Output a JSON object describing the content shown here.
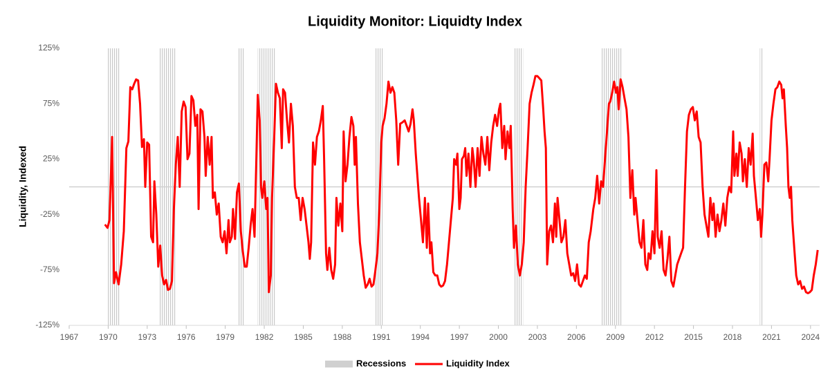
{
  "chart_data": {
    "type": "line",
    "title": "Liquidity Monitor: Liquidty Index",
    "y_label": "Liquidity, Indexed",
    "xlim": [
      1967,
      2024.7
    ],
    "ylim": [
      -125,
      125
    ],
    "xticks": [
      1967,
      1970,
      1973,
      1976,
      1979,
      1982,
      1985,
      1988,
      1991,
      1994,
      1997,
      2000,
      2003,
      2006,
      2009,
      2012,
      2015,
      2018,
      2021,
      2024
    ],
    "yticks": [
      {
        "value": -125,
        "label": "-125%"
      },
      {
        "value": -75,
        "label": "-75%"
      },
      {
        "value": -25,
        "label": "-25%"
      },
      {
        "value": 25,
        "label": "25%"
      },
      {
        "value": 75,
        "label": "75%"
      },
      {
        "value": 125,
        "label": "125%"
      }
    ],
    "legend": "bottom",
    "recessions": {
      "name": "Recessions",
      "color": "#d0d0d0",
      "periods": [
        [
          1969.9,
          1970.9
        ],
        [
          1973.9,
          1975.2
        ],
        [
          1980.0,
          1980.5
        ],
        [
          1981.5,
          1982.9
        ],
        [
          1990.5,
          1991.2
        ],
        [
          2001.2,
          2001.9
        ],
        [
          2007.9,
          2009.5
        ],
        [
          2020.1,
          2020.3
        ]
      ]
    },
    "x": [
      1969.75,
      1969.95,
      1970.1,
      1970.3,
      1970.45,
      1970.6,
      1970.8,
      1971.0,
      1971.2,
      1971.4,
      1971.55,
      1971.7,
      1971.85,
      1972.0,
      1972.15,
      1972.3,
      1972.45,
      1972.6,
      1972.75,
      1972.85,
      1973.0,
      1973.15,
      1973.3,
      1973.45,
      1973.55,
      1973.7,
      1973.85,
      1974.0,
      1974.15,
      1974.3,
      1974.45,
      1974.6,
      1974.75,
      1974.9,
      1975.05,
      1975.2,
      1975.35,
      1975.5,
      1975.65,
      1975.8,
      1975.95,
      1976.1,
      1976.25,
      1976.4,
      1976.55,
      1976.7,
      1976.85,
      1976.95,
      1977.1,
      1977.25,
      1977.4,
      1977.5,
      1977.65,
      1977.8,
      1977.95,
      1978.05,
      1978.2,
      1978.35,
      1978.5,
      1978.65,
      1978.8,
      1978.95,
      1979.1,
      1979.25,
      1979.35,
      1979.5,
      1979.6,
      1979.75,
      1979.9,
      1980.05,
      1980.2,
      1980.35,
      1980.5,
      1980.65,
      1980.8,
      1980.95,
      1981.1,
      1981.25,
      1981.4,
      1981.5,
      1981.65,
      1981.75,
      1981.85,
      1982.0,
      1982.15,
      1982.25,
      1982.35,
      1982.5,
      1982.6,
      1982.75,
      1982.9,
      1983.05,
      1983.2,
      1983.35,
      1983.45,
      1983.6,
      1983.75,
      1983.9,
      1984.05,
      1984.2,
      1984.35,
      1984.5,
      1984.65,
      1984.8,
      1984.95,
      1985.1,
      1985.25,
      1985.4,
      1985.5,
      1985.6,
      1985.75,
      1985.9,
      1986.05,
      1986.2,
      1986.35,
      1986.5,
      1986.6,
      1986.75,
      1986.85,
      1987.0,
      1987.15,
      1987.3,
      1987.45,
      1987.55,
      1987.7,
      1987.85,
      1988.0,
      1988.1,
      1988.25,
      1988.4,
      1988.55,
      1988.7,
      1988.85,
      1988.95,
      1989.05,
      1989.2,
      1989.35,
      1989.5,
      1989.65,
      1989.8,
      1989.95,
      1990.1,
      1990.25,
      1990.4,
      1990.55,
      1990.7,
      1990.85,
      1991.0,
      1991.1,
      1991.25,
      1991.4,
      1991.55,
      1991.7,
      1991.85,
      1992.0,
      1992.15,
      1992.3,
      1992.45,
      1992.6,
      1992.8,
      1992.95,
      1993.1,
      1993.25,
      1993.4,
      1993.5,
      1993.65,
      1993.8,
      1993.9,
      1994.05,
      1994.2,
      1994.35,
      1994.5,
      1994.6,
      1994.75,
      1994.85,
      1995.0,
      1995.15,
      1995.3,
      1995.45,
      1995.6,
      1995.75,
      1995.9,
      1996.05,
      1996.2,
      1996.35,
      1996.5,
      1996.6,
      1996.75,
      1996.85,
      1997.0,
      1997.1,
      1997.2,
      1997.35,
      1997.45,
      1997.55,
      1997.7,
      1997.85,
      1998.0,
      1998.1,
      1998.25,
      1998.4,
      1998.55,
      1998.7,
      1998.85,
      1999.0,
      1999.15,
      1999.3,
      1999.45,
      1999.6,
      1999.75,
      1999.9,
      2000.05,
      2000.15,
      2000.3,
      2000.45,
      2000.55,
      2000.7,
      2000.85,
      2000.95,
      2001.1,
      2001.2,
      2001.35,
      2001.5,
      2001.65,
      2001.8,
      2001.95,
      2002.1,
      2002.25,
      2002.4,
      2002.55,
      2002.7,
      2002.85,
      2003.0,
      2003.15,
      2003.3,
      2003.45,
      2003.55,
      2003.65,
      2003.75,
      2003.9,
      2004.05,
      2004.2,
      2004.35,
      2004.45,
      2004.55,
      2004.7,
      2004.85,
      2005.0,
      2005.15,
      2005.3,
      2005.45,
      2005.6,
      2005.75,
      2005.9,
      2006.05,
      2006.2,
      2006.35,
      2006.5,
      2006.65,
      2006.8,
      2006.95,
      2007.1,
      2007.3,
      2007.45,
      2007.6,
      2007.75,
      2007.9,
      2008.05,
      2008.2,
      2008.35,
      2008.5,
      2008.6,
      2008.75,
      2008.9,
      2009.05,
      2009.15,
      2009.25,
      2009.4,
      2009.55,
      2009.7,
      2009.85,
      2010.0,
      2010.15,
      2010.3,
      2010.45,
      2010.55,
      2010.7,
      2010.85,
      2011.0,
      2011.15,
      2011.3,
      2011.45,
      2011.55,
      2011.7,
      2011.85,
      2012.0,
      2012.15,
      2012.25,
      2012.4,
      2012.55,
      2012.7,
      2012.85,
      2013.0,
      2013.15,
      2013.3,
      2013.45,
      2013.6,
      2013.75,
      2013.9,
      2014.05,
      2014.2,
      2014.35,
      2014.5,
      2014.65,
      2014.8,
      2014.95,
      2015.1,
      2015.25,
      2015.4,
      2015.55,
      2015.7,
      2015.85,
      2016.0,
      2016.15,
      2016.3,
      2016.45,
      2016.55,
      2016.7,
      2016.85,
      2017.0,
      2017.15,
      2017.3,
      2017.45,
      2017.6,
      2017.75,
      2017.9,
      2018.05,
      2018.15,
      2018.3,
      2018.4,
      2018.55,
      2018.7,
      2018.8,
      2018.95,
      2019.1,
      2019.25,
      2019.4,
      2019.55,
      2019.65,
      2019.8,
      2019.95,
      2020.1,
      2020.2,
      2020.3,
      2020.45,
      2020.6,
      2020.75,
      2020.85,
      2021.0,
      2021.15,
      2021.3,
      2021.45,
      2021.6,
      2021.75,
      2021.85,
      2021.95,
      2022.1,
      2022.2,
      2022.3,
      2022.4,
      2022.5,
      2022.6,
      2022.75,
      2022.9,
      2023.05,
      2023.2,
      2023.35,
      2023.5,
      2023.65,
      2023.8,
      2023.95,
      2024.1,
      2024.25,
      2024.4,
      2024.55
    ],
    "series": [
      {
        "name": "Liquidity Index",
        "color": "#ff0000",
        "values": [
          -34,
          -37,
          -30,
          45,
          -87,
          -77,
          -88,
          -70,
          -40,
          35,
          41,
          90,
          88,
          93,
          97,
          96,
          75,
          36,
          43,
          0,
          40,
          38,
          -45,
          -50,
          5,
          -25,
          -72,
          -53,
          -80,
          -88,
          -84,
          -93,
          -92,
          -85,
          -20,
          20,
          45,
          0,
          68,
          77,
          72,
          25,
          30,
          82,
          78,
          55,
          65,
          -20,
          70,
          68,
          45,
          10,
          45,
          20,
          45,
          -10,
          -5,
          -25,
          -15,
          -45,
          -50,
          -40,
          -60,
          -30,
          -50,
          -45,
          -20,
          -47,
          -5,
          3,
          -40,
          -58,
          -72,
          -72,
          -55,
          -35,
          -20,
          -45,
          30,
          83,
          60,
          0,
          -10,
          5,
          -20,
          -10,
          -95,
          -80,
          -10,
          40,
          93,
          85,
          80,
          35,
          88,
          85,
          60,
          40,
          75,
          55,
          0,
          -10,
          -10,
          -30,
          -10,
          -20,
          -35,
          -50,
          -65,
          -50,
          40,
          20,
          45,
          50,
          60,
          73,
          25,
          -60,
          -75,
          -55,
          -75,
          -83,
          -70,
          -10,
          -35,
          -15,
          -40,
          50,
          5,
          20,
          45,
          63,
          55,
          20,
          45,
          -15,
          -50,
          -65,
          -80,
          -91,
          -88,
          -83,
          -90,
          -88,
          -75,
          -60,
          -20,
          40,
          55,
          62,
          75,
          95,
          85,
          90,
          85,
          60,
          20,
          57,
          58,
          60,
          55,
          50,
          57,
          70,
          60,
          30,
          5,
          -10,
          -30,
          -50,
          -10,
          -55,
          -15,
          -60,
          -50,
          -77,
          -80,
          -80,
          -88,
          -90,
          -89,
          -85,
          -70,
          -50,
          -30,
          -10,
          25,
          20,
          30,
          -20,
          -10,
          25,
          28,
          35,
          10,
          30,
          0,
          35,
          25,
          0,
          35,
          10,
          45,
          30,
          20,
          45,
          15,
          40,
          55,
          65,
          55,
          70,
          75,
          35,
          55,
          25,
          50,
          35,
          55,
          -20,
          -55,
          -35,
          -70,
          -80,
          -70,
          -50,
          0,
          35,
          75,
          85,
          92,
          100,
          100,
          98,
          96,
          70,
          50,
          35,
          -70,
          -40,
          -35,
          -50,
          -15,
          -45,
          -10,
          -30,
          -50,
          -45,
          -30,
          -60,
          -70,
          -80,
          -78,
          -85,
          -70,
          -88,
          -90,
          -85,
          -80,
          -83,
          -50,
          -40,
          -20,
          -10,
          10,
          -15,
          5,
          0,
          25,
          50,
          75,
          77,
          85,
          95,
          85,
          90,
          70,
          97,
          90,
          80,
          70,
          45,
          -10,
          15,
          -25,
          -10,
          -30,
          -50,
          -55,
          -30,
          -70,
          -75,
          -60,
          -65,
          -40,
          -60,
          15,
          -45,
          -55,
          -40,
          -75,
          -80,
          -65,
          -45,
          -85,
          -90,
          -80,
          -70,
          -65,
          -60,
          -55,
          0,
          50,
          65,
          70,
          72,
          60,
          68,
          45,
          40,
          0,
          -25,
          -35,
          -45,
          -10,
          -30,
          -15,
          -45,
          -25,
          -40,
          -30,
          -15,
          -35,
          -10,
          0,
          -5,
          50,
          10,
          30,
          10,
          40,
          30,
          5,
          25,
          0,
          35,
          20,
          48,
          10,
          -10,
          -30,
          -20,
          -45,
          -25,
          20,
          22,
          5,
          25,
          60,
          75,
          88,
          90,
          95,
          92,
          80,
          88,
          55,
          35,
          0,
          -10,
          0,
          -30,
          -55,
          -80,
          -88,
          -85,
          -92,
          -90,
          -95,
          -96,
          -95,
          -93,
          -80,
          -70,
          -57
        ]
      }
    ]
  }
}
